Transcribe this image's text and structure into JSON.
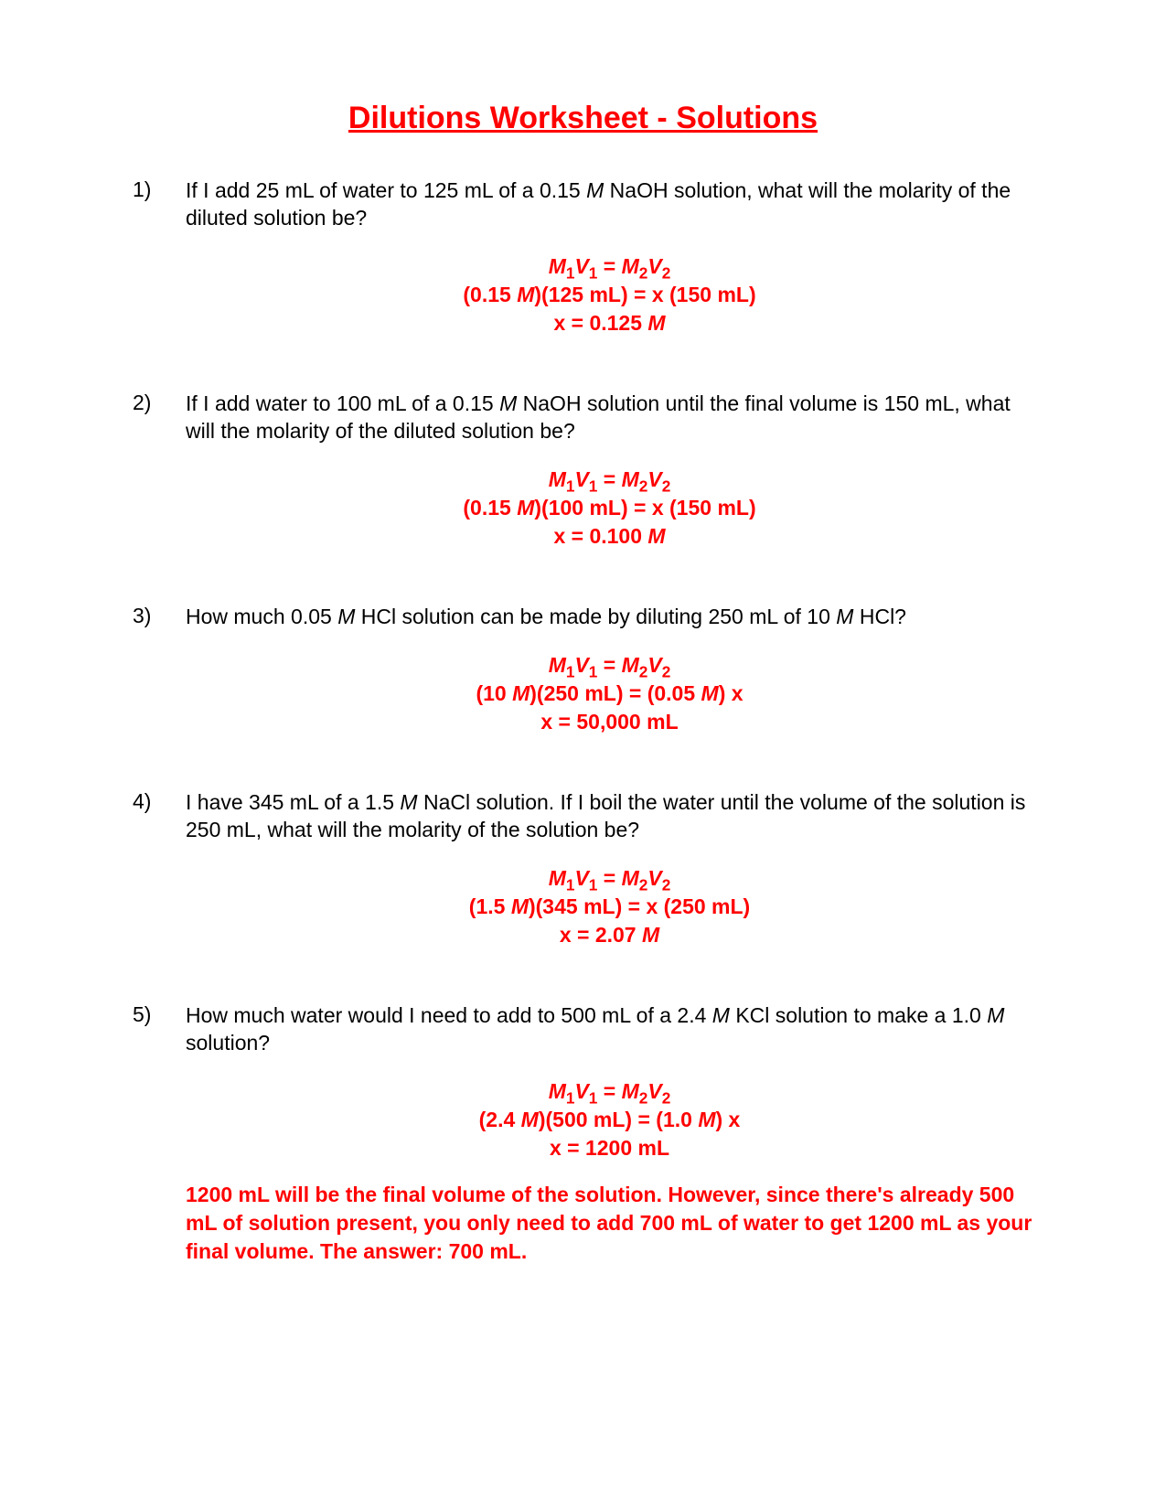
{
  "title": "Dilutions Worksheet - Solutions",
  "colors": {
    "accent": "#ff0000",
    "text": "#000000",
    "background": "#ffffff"
  },
  "typography": {
    "title_fontsize": 34,
    "body_fontsize": 23,
    "font_family": "Arial"
  },
  "problems": [
    {
      "number": "1)",
      "question_pre": "If I add 25 mL of water to 125 mL of a 0.15 ",
      "question_mid": " NaOH solution, what will the molarity of the diluted solution be?",
      "work": {
        "line1_pre": "M",
        "line1_sub1": "1",
        "line1_mid1": "V",
        "line1_sub2": "1",
        "line1_mid2": " = M",
        "line1_sub3": "2",
        "line1_mid3": "V",
        "line1_sub4": "2",
        "line2_pre": "(0.15 ",
        "line2_mid": ")(125 mL) = x (150 mL)",
        "line3_pre": "x = 0.125 ",
        "line3_post": ""
      }
    },
    {
      "number": "2)",
      "question_pre": "If I add water to 100 mL of a 0.15 ",
      "question_mid": " NaOH solution until the final volume is 150 mL, what will the molarity of the diluted solution be?",
      "work": {
        "line2_pre": "(0.15 ",
        "line2_mid": ")(100 mL) = x (150 mL)",
        "line3_pre": "x = 0.100 "
      }
    },
    {
      "number": "3)",
      "question_pre": "How much 0.05 ",
      "question_mid": " HCl solution can be made by diluting 250 mL of 10 ",
      "question_post": " HCl?",
      "work": {
        "line2_pre": "(10 ",
        "line2_mid": ")(250 mL) = (0.05 ",
        "line2_post": ") x",
        "line3_full": "x = 50,000 mL"
      }
    },
    {
      "number": "4)",
      "question_pre": "I have 345 mL of a 1.5 ",
      "question_mid": " NaCl solution.  If I boil the water until the volume of the solution is 250 mL, what will the molarity of the solution be?",
      "work": {
        "line2_pre": "(1.5 ",
        "line2_mid": ")(345 mL) = x (250 mL)",
        "line3_pre": "x = 2.07 "
      }
    },
    {
      "number": "5)",
      "question_pre": "How much water would I need to add to 500 mL of a 2.4 ",
      "question_mid": " KCl solution to make a 1.0 ",
      "question_post": " solution?",
      "work": {
        "line2_pre": "(2.4 ",
        "line2_mid": ")(500 mL) = (1.0 ",
        "line2_post": ") x",
        "line3_full": "x = 1200 mL"
      },
      "note": "1200 mL will be the final volume of the solution.  However, since there's already 500 mL of solution present, you only need to add 700 mL of water to get 1200 mL as your final volume.  The answer:  700 mL."
    }
  ],
  "symbols": {
    "M": "M"
  }
}
